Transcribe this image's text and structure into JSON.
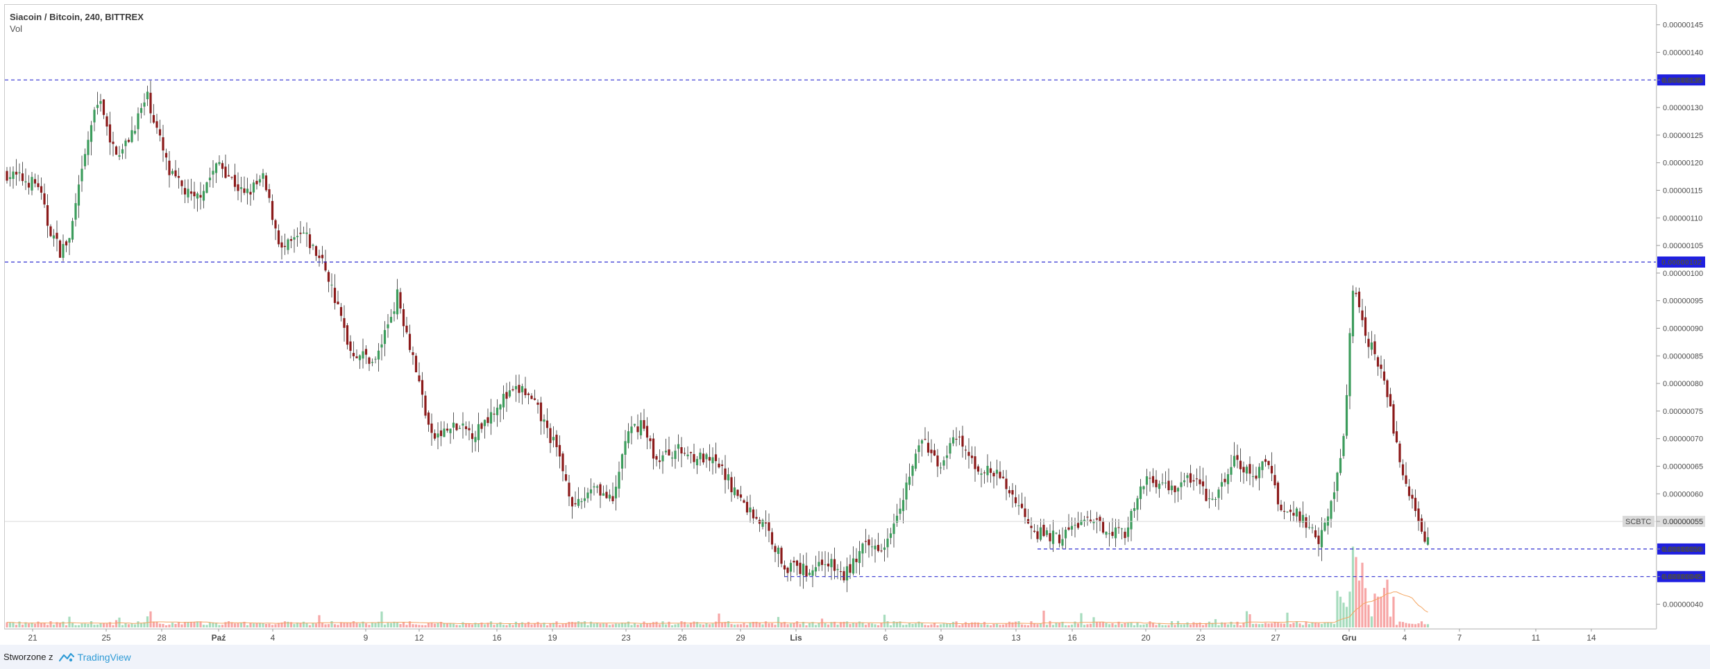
{
  "legend": {
    "title": "Siacoin / Bitcoin, 240, BITTREX",
    "volume_label": "Vol"
  },
  "footer": {
    "made_with": "Stworzone z",
    "brand": "TradingView"
  },
  "colors": {
    "up": "#3c9c5c",
    "down": "#8b1a1a",
    "vol_up": "#a6dcbd",
    "vol_down": "#f7a6a6",
    "vol_ma": "#f4a460",
    "level_line": "#2f2fd0",
    "level_tag_bg": "#1f1fe0",
    "symbol_tag_bg": "#d9d9d9"
  },
  "chart_data": {
    "type": "candlestick",
    "symbol": "SCBTC",
    "timeframe": "240",
    "exchange": "BITTREX",
    "ylim": [
      3.5e-07,
      1.48e-06
    ],
    "price_ticks": [
      "0.00000040",
      "0.00000045",
      "0.00000050",
      "0.00000055",
      "0.00000060",
      "0.00000065",
      "0.00000070",
      "0.00000075",
      "0.00000080",
      "0.00000085",
      "0.00000090",
      "0.00000095",
      "0.00000100",
      "0.00000105",
      "0.00000110",
      "0.00000115",
      "0.00000120",
      "0.00000125",
      "0.00000130",
      "0.00000135",
      "0.00000140",
      "0.00000145"
    ],
    "time_ticks": [
      "21",
      "25",
      "28",
      "Paź",
      "4",
      "9",
      "12",
      "16",
      "19",
      "23",
      "26",
      "29",
      "Lis",
      "6",
      "9",
      "13",
      "16",
      "20",
      "23",
      "27",
      "Gru",
      "4",
      "7",
      "11",
      "14"
    ],
    "horizontal_levels": [
      {
        "value": 1.35e-06,
        "label": "0.00000135",
        "start_index": 0
      },
      {
        "value": 1.02e-06,
        "label": "0.00000102",
        "start_index": 0
      },
      {
        "value": 5e-07,
        "label": "0.00000050",
        "start_index": 330
      },
      {
        "value": 4.5e-07,
        "label": "0.00000045",
        "start_index": 249
      }
    ],
    "last_price": {
      "label": "SCBTC",
      "value": "0.00000055",
      "numeric": 5.5e-07
    },
    "anchors": [
      [
        0,
        118
      ],
      [
        10,
        116
      ],
      [
        13,
        109
      ],
      [
        17,
        104
      ],
      [
        20,
        106
      ],
      [
        27,
        127
      ],
      [
        30,
        132
      ],
      [
        33,
        123
      ],
      [
        37,
        122
      ],
      [
        45,
        132
      ],
      [
        52,
        118
      ],
      [
        60,
        113
      ],
      [
        68,
        120
      ],
      [
        76,
        114
      ],
      [
        82,
        117
      ],
      [
        88,
        104
      ],
      [
        95,
        107
      ],
      [
        102,
        101
      ],
      [
        110,
        86
      ],
      [
        118,
        84
      ],
      [
        125,
        96
      ],
      [
        130,
        85
      ],
      [
        136,
        70
      ],
      [
        143,
        72
      ],
      [
        150,
        71
      ],
      [
        158,
        77
      ],
      [
        165,
        79
      ],
      [
        170,
        75
      ],
      [
        176,
        68
      ],
      [
        182,
        57
      ],
      [
        188,
        62
      ],
      [
        194,
        58
      ],
      [
        198,
        70
      ],
      [
        203,
        73
      ],
      [
        208,
        66
      ],
      [
        214,
        68
      ],
      [
        220,
        67
      ],
      [
        228,
        65
      ],
      [
        236,
        58
      ],
      [
        243,
        54
      ],
      [
        249,
        47
      ],
      [
        256,
        46
      ],
      [
        262,
        48
      ],
      [
        268,
        45
      ],
      [
        274,
        50
      ],
      [
        281,
        51
      ],
      [
        287,
        60
      ],
      [
        293,
        70
      ],
      [
        298,
        65
      ],
      [
        304,
        70
      ],
      [
        310,
        65
      ],
      [
        318,
        63
      ],
      [
        324,
        58
      ],
      [
        330,
        53
      ],
      [
        337,
        52
      ],
      [
        344,
        55
      ],
      [
        351,
        54
      ],
      [
        358,
        53
      ],
      [
        365,
        63
      ],
      [
        373,
        61
      ],
      [
        380,
        63
      ],
      [
        386,
        58
      ],
      [
        393,
        66
      ],
      [
        399,
        63
      ],
      [
        404,
        66
      ],
      [
        408,
        57
      ],
      [
        414,
        56
      ],
      [
        420,
        52
      ],
      [
        425,
        60
      ],
      [
        428,
        70
      ],
      [
        431,
        97
      ],
      [
        435,
        89
      ],
      [
        440,
        83
      ],
      [
        444,
        72
      ],
      [
        448,
        61
      ],
      [
        452,
        55
      ],
      [
        455,
        51
      ]
    ]
  }
}
